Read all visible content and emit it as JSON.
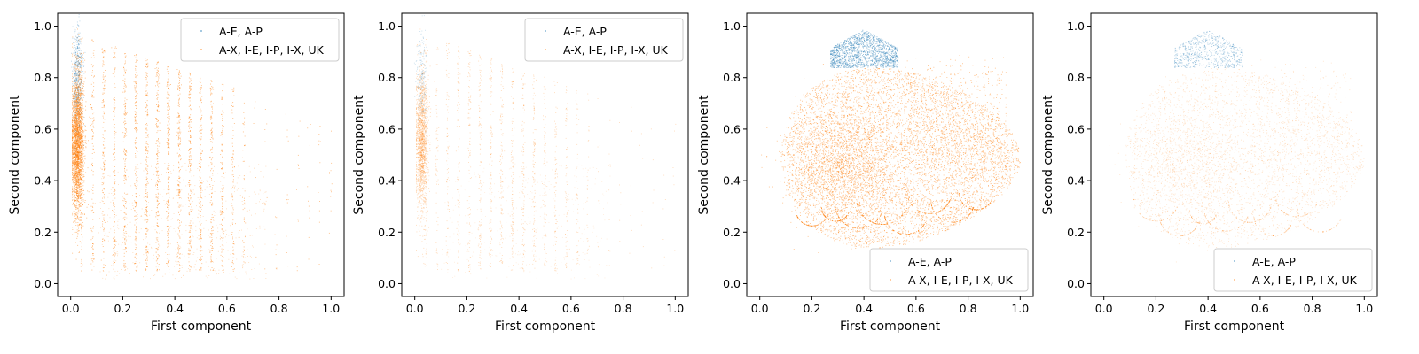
{
  "colors": {
    "series_a": "#1f77b4",
    "series_b": "#ff7f0e",
    "axis": "#000000",
    "legend_border": "#cccccc"
  },
  "chart_data": [
    {
      "type": "scatter",
      "pattern": "stripes",
      "density": "high",
      "xlabel": "First component",
      "ylabel": "Second component",
      "xlim": [
        -0.05,
        1.05
      ],
      "ylim": [
        -0.05,
        1.05
      ],
      "xticks": [
        "0.0",
        "0.2",
        "0.4",
        "0.6",
        "0.8",
        "1.0"
      ],
      "yticks": [
        "0.0",
        "0.2",
        "0.4",
        "0.6",
        "0.8",
        "1.0"
      ],
      "legend_position": "top-right",
      "series": [
        {
          "name": "A-E, A-P",
          "color": "#1f77b4"
        },
        {
          "name": "A-X, I-E, I-P, I-X, UK",
          "color": "#ff7f0e"
        }
      ]
    },
    {
      "type": "scatter",
      "pattern": "stripes",
      "density": "low",
      "xlabel": "First component",
      "ylabel": "Second component",
      "xlim": [
        -0.05,
        1.05
      ],
      "ylim": [
        -0.05,
        1.05
      ],
      "xticks": [
        "0.0",
        "0.2",
        "0.4",
        "0.6",
        "0.8",
        "1.0"
      ],
      "yticks": [
        "0.0",
        "0.2",
        "0.4",
        "0.6",
        "0.8",
        "1.0"
      ],
      "legend_position": "top-right",
      "series": [
        {
          "name": "A-E, A-P",
          "color": "#1f77b4"
        },
        {
          "name": "A-X, I-E, I-P, I-X, UK",
          "color": "#ff7f0e"
        }
      ]
    },
    {
      "type": "scatter",
      "pattern": "cloud",
      "density": "high",
      "xlabel": "First component",
      "ylabel": "Second component",
      "xlim": [
        -0.05,
        1.05
      ],
      "ylim": [
        -0.05,
        1.05
      ],
      "xticks": [
        "0.0",
        "0.2",
        "0.4",
        "0.6",
        "0.8",
        "1.0"
      ],
      "yticks": [
        "0.0",
        "0.2",
        "0.4",
        "0.6",
        "0.8",
        "1.0"
      ],
      "legend_position": "bottom-right",
      "series": [
        {
          "name": "A-E, A-P",
          "color": "#1f77b4"
        },
        {
          "name": "A-X, I-E, I-P, I-X, UK",
          "color": "#ff7f0e"
        }
      ]
    },
    {
      "type": "scatter",
      "pattern": "cloud",
      "density": "low",
      "xlabel": "First component",
      "ylabel": "Second component",
      "xlim": [
        -0.05,
        1.05
      ],
      "ylim": [
        -0.05,
        1.05
      ],
      "xticks": [
        "0.0",
        "0.2",
        "0.4",
        "0.6",
        "0.8",
        "1.0"
      ],
      "yticks": [
        "0.0",
        "0.2",
        "0.4",
        "0.6",
        "0.8",
        "1.0"
      ],
      "legend_position": "bottom-right",
      "series": [
        {
          "name": "A-E, A-P",
          "color": "#1f77b4"
        },
        {
          "name": "A-X, I-E, I-P, I-X, UK",
          "color": "#ff7f0e"
        }
      ]
    }
  ]
}
